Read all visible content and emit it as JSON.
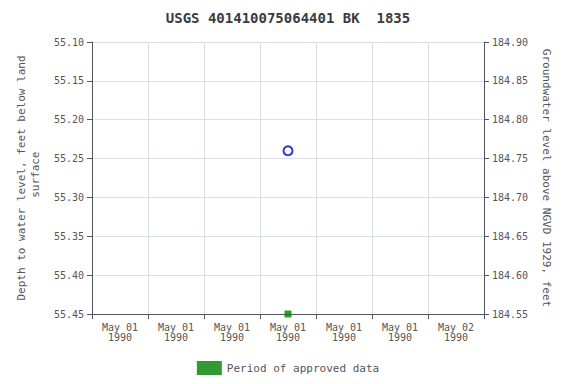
{
  "chart_data": {
    "type": "scatter",
    "title": "USGS 401410075064401 BK  1835",
    "ylabel": "Depth to water level, feet below land\n surface",
    "y2label": "Groundwater level above NGVD 1929, feet",
    "categories": [
      "May 01\n1990",
      "May 01\n1990",
      "May 01\n1990",
      "May 01\n1990",
      "May 01\n1990",
      "May 01\n1990",
      "May 02\n1990"
    ],
    "series": [
      {
        "values": [
          null,
          null,
          null,
          55.24,
          null,
          null,
          null
        ],
        "color": "#0000cc",
        "marker": "open_circle"
      },
      {
        "name": "Period of approved data",
        "values": [
          null,
          null,
          null,
          55.45,
          null,
          null,
          null
        ],
        "color": "#008000",
        "marker": "square"
      }
    ],
    "ylim": [
      55.45,
      55.1
    ],
    "yticks": [
      {
        "value": 55.1,
        "label": "55.10"
      },
      55.15,
      {
        "value": 55.2,
        "label": "55.20"
      },
      55.25,
      {
        "value": 55.3,
        "label": "55.30"
      },
      55.35,
      {
        "value": 55.4,
        "label": "55.40"
      },
      55.45
    ],
    "y2lim": [
      184.55,
      184.9
    ],
    "y2ticks": [
      {
        "value": 184.9,
        "label": "184.90"
      },
      184.85,
      {
        "value": 184.8,
        "label": "184.80"
      },
      184.75,
      {
        "value": 184.7,
        "label": "184.70"
      },
      184.65,
      {
        "value": 184.6,
        "label": "184.60"
      },
      184.55
    ],
    "grid": true,
    "legend": "bottom"
  }
}
